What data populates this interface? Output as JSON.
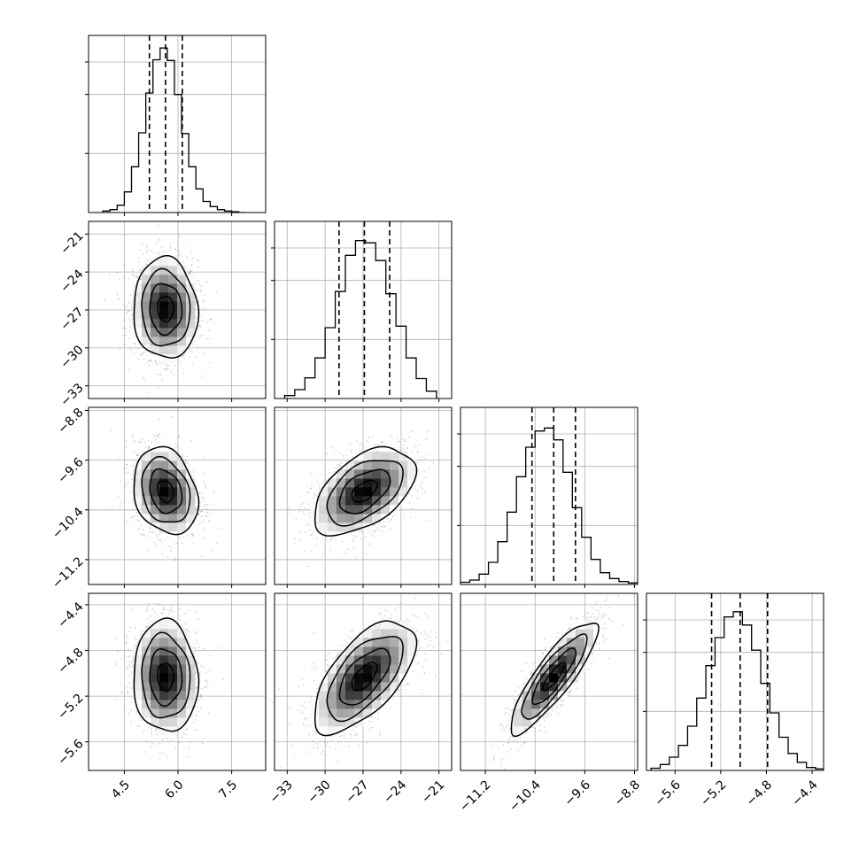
{
  "chart_data": {
    "type": "corner",
    "colors": {
      "line": "#000000",
      "grid": "#b0b0b0",
      "points": "#888888",
      "density_dark": "#000000",
      "background": "#ffffff"
    },
    "grid": true,
    "parameters": [
      {
        "index": 0,
        "median": 5.65,
        "quantiles": [
          5.2,
          5.65,
          6.12
        ],
        "std": 0.45,
        "range": [
          3.5,
          8.45
        ],
        "ticks": [
          4.5,
          6.0,
          7.5
        ],
        "tick_labels": [
          "4.5",
          "6.0",
          "7.5"
        ],
        "hist": {
          "bins": [
            3.9,
            4.1,
            4.3,
            4.5,
            4.7,
            4.9,
            5.1,
            5.3,
            5.5,
            5.7,
            5.9,
            6.1,
            6.3,
            6.5,
            6.7,
            6.9,
            7.1,
            7.3,
            7.5,
            7.7,
            7.9
          ],
          "counts": [
            2,
            4,
            10,
            28,
            62,
            108,
            162,
            207,
            223,
            206,
            160,
            107,
            62,
            32,
            15,
            8,
            4,
            2,
            1,
            0
          ],
          "max": 240
        }
      },
      {
        "index": 1,
        "median": -26.9,
        "quantiles": [
          -28.9,
          -26.9,
          -24.9
        ],
        "std": 2.0,
        "range": [
          -34.0,
          -20.0
        ],
        "ticks": [
          -33,
          -30,
          -27,
          -24,
          -21
        ],
        "tick_labels": [
          "−33",
          "−30",
          "−27",
          "−24",
          "−21"
        ],
        "hist": {
          "bins": [
            -33.2,
            -32.4,
            -31.6,
            -30.8,
            -30.0,
            -29.2,
            -28.4,
            -27.6,
            -26.8,
            -26.0,
            -25.2,
            -24.4,
            -23.6,
            -22.8,
            -22.0,
            -21.2
          ],
          "counts": [
            4,
            12,
            28,
            55,
            96,
            145,
            194,
            214,
            211,
            187,
            142,
            98,
            55,
            27,
            10
          ],
          "max": 240
        }
      },
      {
        "index": 2,
        "median": -10.1,
        "quantiles": [
          -10.45,
          -10.1,
          -9.75
        ],
        "std": 0.35,
        "range": [
          -11.6,
          -8.75
        ],
        "ticks": [
          -11.2,
          -10.4,
          -9.6,
          -8.8
        ],
        "tick_labels": [
          "−11.2",
          "−10.4",
          "−9.6",
          "−8.8"
        ],
        "hist": {
          "bins": [
            -11.6,
            -11.45,
            -11.3,
            -11.15,
            -11.0,
            -10.85,
            -10.7,
            -10.55,
            -10.4,
            -10.25,
            -10.1,
            -9.95,
            -9.8,
            -9.65,
            -9.5,
            -9.35,
            -9.2,
            -9.05,
            -8.9,
            -8.75
          ],
          "counts": [
            3,
            6,
            14,
            30,
            58,
            98,
            146,
            186,
            208,
            212,
            196,
            152,
            104,
            64,
            34,
            16,
            8,
            4,
            2
          ],
          "max": 240
        }
      },
      {
        "index": 3,
        "median": -5.03,
        "quantiles": [
          -5.28,
          -5.03,
          -4.79
        ],
        "std": 0.245,
        "range": [
          -5.85,
          -4.3
        ],
        "ticks": [
          -5.6,
          -5.2,
          -4.8,
          -4.4
        ],
        "tick_labels": [
          "−5.6",
          "−5.2",
          "−4.8",
          "−4.4"
        ],
        "hist": {
          "bins": [
            -5.81,
            -5.73,
            -5.65,
            -5.57,
            -5.49,
            -5.41,
            -5.33,
            -5.25,
            -5.17,
            -5.09,
            -5.01,
            -4.93,
            -4.85,
            -4.77,
            -4.69,
            -4.61,
            -4.53,
            -4.45,
            -4.37,
            -4.29
          ],
          "counts": [
            3,
            8,
            18,
            34,
            60,
            98,
            142,
            180,
            208,
            215,
            197,
            163,
            118,
            78,
            45,
            23,
            11,
            4,
            2
          ],
          "max": 240
        }
      }
    ],
    "correlations": [
      {
        "pair": [
          0,
          1
        ],
        "rho": -0.05
      },
      {
        "pair": [
          0,
          2
        ],
        "rho": -0.22
      },
      {
        "pair": [
          1,
          2
        ],
        "rho": 0.5
      },
      {
        "pair": [
          0,
          3
        ],
        "rho": -0.05
      },
      {
        "pair": [
          1,
          3
        ],
        "rho": 0.62
      },
      {
        "pair": [
          2,
          3
        ],
        "rho": 0.86
      }
    ],
    "contour_levels_sigma": [
      0.5,
      1.0,
      1.5,
      2.0
    ]
  }
}
